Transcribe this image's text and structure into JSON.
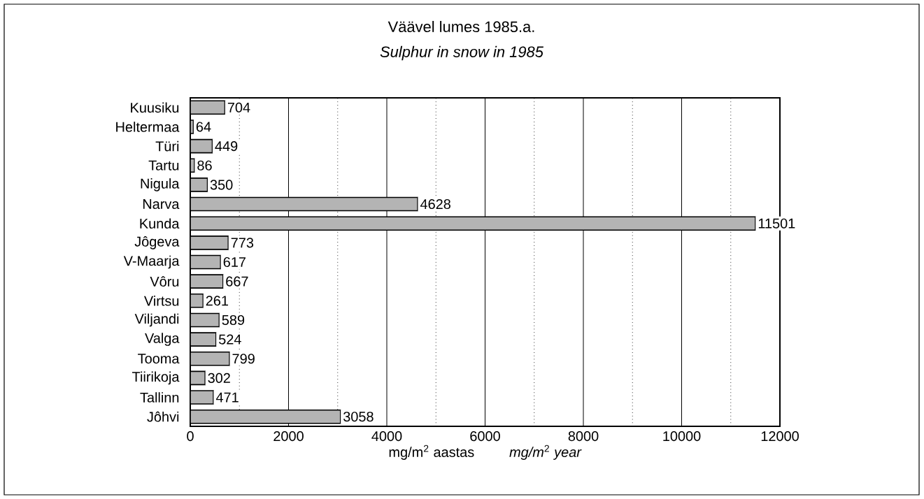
{
  "chart_data": {
    "type": "bar",
    "orientation": "horizontal",
    "title": "Väävel lumes 1985.a.",
    "subtitle": "Sulphur  in snow in 1985",
    "xlabel": "mg/m$^{2}$ aastas",
    "annotations": [
      "*mg/m*$^{2}$ *year*"
    ],
    "categories": [
      "Kuusiku",
      "Heltermaa",
      "Türi",
      "Tartu",
      "Nigula",
      "Narva",
      "Kunda",
      "Jôgeva",
      "V-Maarja",
      "Vôru",
      "Virtsu",
      "Viljandi",
      "Valga",
      "Tooma",
      "Tiirikoja",
      "Tallinn",
      "Jôhvi"
    ],
    "values": [
      704,
      64,
      449,
      86,
      350,
      4628,
      11501,
      773,
      617,
      667,
      261,
      589,
      524,
      799,
      302,
      471,
      3058
    ],
    "color": "#b4b4b4",
    "data_labels": true,
    "grid": "x",
    "xlim": [
      0,
      12000
    ],
    "xticks": [
      0,
      {
        "value": 1000,
        "label": null
      },
      2000,
      {
        "value": 3000,
        "label": null
      },
      4000,
      {
        "value": 5000,
        "label": null
      },
      6000,
      {
        "value": 7000,
        "label": null
      },
      8000,
      {
        "value": 9000,
        "label": null
      },
      10000,
      {
        "value": 11000,
        "label": null
      },
      12000
    ]
  }
}
